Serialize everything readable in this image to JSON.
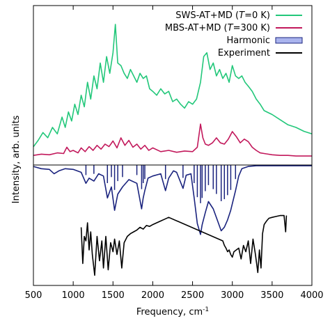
{
  "chart_data": {
    "type": "line",
    "xlabel": "Frequency, cm",
    "xlabel_sup": "-1",
    "ylabel": "Intensity, arb. units",
    "xlim": [
      500,
      4000
    ],
    "x_ticks": [
      "500",
      "1000",
      "1500",
      "2000",
      "2500",
      "3000",
      "3500",
      "4000"
    ],
    "y_ticks_shown": false,
    "grid": false,
    "legend_placement": "top-right",
    "colors": {
      "sws": "#22c77a",
      "mbs": "#c2185b",
      "harmonic": "#1a237e",
      "harmonic_fill": "#aab4ee",
      "experiment": "#000000"
    },
    "series": [
      {
        "name": "SWS-AT+MD (T=0 K)",
        "legend_parts": [
          "SWS-AT+MD (",
          "T",
          "=0 K)"
        ],
        "x": [
          500,
          560,
          620,
          680,
          740,
          800,
          860,
          900,
          940,
          980,
          1020,
          1060,
          1100,
          1140,
          1180,
          1220,
          1260,
          1300,
          1340,
          1380,
          1420,
          1460,
          1500,
          1530,
          1560,
          1600,
          1640,
          1680,
          1720,
          1760,
          1800,
          1840,
          1880,
          1920,
          1960,
          2000,
          2050,
          2100,
          2150,
          2200,
          2250,
          2300,
          2350,
          2400,
          2450,
          2500,
          2550,
          2600,
          2640,
          2680,
          2720,
          2760,
          2800,
          2840,
          2880,
          2920,
          2960,
          3000,
          3040,
          3080,
          3120,
          3160,
          3200,
          3250,
          3300,
          3350,
          3400,
          3500,
          3600,
          3700,
          3800,
          3900,
          4000
        ],
        "values": [
          0.05,
          0.1,
          0.16,
          0.12,
          0.2,
          0.15,
          0.28,
          0.2,
          0.32,
          0.25,
          0.38,
          0.3,
          0.45,
          0.36,
          0.55,
          0.42,
          0.6,
          0.5,
          0.7,
          0.55,
          0.75,
          0.62,
          0.78,
          1.0,
          0.7,
          0.68,
          0.62,
          0.58,
          0.65,
          0.6,
          0.55,
          0.62,
          0.58,
          0.6,
          0.5,
          0.48,
          0.45,
          0.5,
          0.46,
          0.48,
          0.4,
          0.42,
          0.38,
          0.35,
          0.4,
          0.38,
          0.42,
          0.55,
          0.75,
          0.78,
          0.65,
          0.7,
          0.6,
          0.65,
          0.58,
          0.62,
          0.55,
          0.68,
          0.6,
          0.58,
          0.6,
          0.55,
          0.52,
          0.48,
          0.42,
          0.38,
          0.33,
          0.3,
          0.26,
          0.22,
          0.2,
          0.17,
          0.15
        ]
      },
      {
        "name": "MBS-AT+MD (T=300 K)",
        "legend_parts": [
          "MBS-AT+MD (",
          "T",
          "=300 K)"
        ],
        "x": [
          500,
          600,
          700,
          800,
          880,
          920,
          960,
          1000,
          1060,
          1100,
          1150,
          1200,
          1250,
          1300,
          1350,
          1400,
          1450,
          1500,
          1550,
          1600,
          1650,
          1700,
          1750,
          1800,
          1850,
          1900,
          1950,
          2000,
          2100,
          2200,
          2300,
          2400,
          2500,
          2560,
          2600,
          2630,
          2660,
          2700,
          2750,
          2800,
          2850,
          2900,
          2950,
          3000,
          3050,
          3100,
          3150,
          3200,
          3250,
          3300,
          3350,
          3400,
          3500,
          3600,
          3700,
          3800,
          3900,
          4000
        ],
        "values": [
          0.02,
          0.04,
          0.03,
          0.06,
          0.05,
          0.15,
          0.08,
          0.1,
          0.06,
          0.14,
          0.08,
          0.16,
          0.1,
          0.18,
          0.12,
          0.2,
          0.16,
          0.25,
          0.14,
          0.3,
          0.18,
          0.26,
          0.15,
          0.2,
          0.12,
          0.18,
          0.1,
          0.14,
          0.08,
          0.1,
          0.07,
          0.09,
          0.08,
          0.15,
          0.52,
          0.3,
          0.2,
          0.18,
          0.22,
          0.3,
          0.22,
          0.2,
          0.28,
          0.4,
          0.32,
          0.22,
          0.28,
          0.24,
          0.15,
          0.1,
          0.06,
          0.05,
          0.03,
          0.02,
          0.02,
          0.01,
          0.01,
          0.01
        ]
      },
      {
        "name": "Harmonic",
        "x": [
          500,
          600,
          700,
          760,
          820,
          900,
          1000,
          1100,
          1160,
          1200,
          1260,
          1320,
          1380,
          1430,
          1480,
          1520,
          1560,
          1620,
          1700,
          1800,
          1860,
          1880,
          1900,
          1940,
          2000,
          2100,
          2160,
          2200,
          2260,
          2300,
          2380,
          2420,
          2480,
          2520,
          2560,
          2600,
          2620,
          2660,
          2700,
          2760,
          2800,
          2860,
          2900,
          2940,
          2980,
          3040,
          3080,
          3120,
          3200,
          3300,
          3400,
          3600,
          3800,
          4000
        ],
        "values": [
          0.02,
          0.05,
          0.06,
          0.12,
          0.08,
          0.05,
          0.06,
          0.1,
          0.25,
          0.18,
          0.22,
          0.12,
          0.15,
          0.45,
          0.3,
          0.62,
          0.4,
          0.3,
          0.2,
          0.25,
          0.6,
          0.45,
          0.35,
          0.18,
          0.15,
          0.12,
          0.35,
          0.18,
          0.08,
          0.1,
          0.32,
          0.14,
          0.12,
          0.45,
          0.8,
          0.95,
          0.82,
          0.65,
          0.5,
          0.6,
          0.72,
          0.9,
          0.85,
          0.75,
          0.62,
          0.35,
          0.15,
          0.05,
          0.02,
          0.01,
          0.01,
          0.01,
          0.01,
          0.01
        ]
      },
      {
        "name": "Experiment",
        "x": [
          1100,
          1120,
          1140,
          1160,
          1180,
          1200,
          1220,
          1240,
          1270,
          1300,
          1330,
          1360,
          1380,
          1410,
          1440,
          1470,
          1500,
          1520,
          1550,
          1580,
          1610,
          1640,
          1680,
          1720,
          1760,
          1800,
          1840,
          1880,
          1920,
          1960,
          2000,
          2050,
          2100,
          2150,
          2200,
          2880,
          2900,
          2920,
          2940,
          2960,
          2980,
          3000,
          3020,
          3050,
          3080,
          3110,
          3140,
          3170,
          3200,
          3230,
          3260,
          3290,
          3320,
          3340,
          3360,
          3380,
          3400,
          3430,
          3460,
          3500,
          3550,
          3600,
          3650,
          3670,
          3680
        ],
        "values": [
          0.45,
          0.85,
          0.55,
          0.6,
          0.4,
          0.7,
          0.5,
          0.75,
          0.98,
          0.55,
          0.82,
          0.6,
          0.9,
          0.55,
          0.92,
          0.62,
          0.72,
          0.58,
          0.75,
          0.6,
          0.9,
          0.62,
          0.55,
          0.52,
          0.5,
          0.48,
          0.45,
          0.47,
          0.43,
          0.44,
          0.42,
          0.4,
          0.38,
          0.36,
          0.34,
          0.6,
          0.65,
          0.68,
          0.72,
          0.7,
          0.75,
          0.78,
          0.72,
          0.7,
          0.68,
          0.8,
          0.65,
          0.72,
          0.6,
          0.85,
          0.58,
          0.75,
          0.95,
          0.7,
          0.9,
          0.52,
          0.42,
          0.38,
          0.35,
          0.34,
          0.33,
          0.32,
          0.32,
          0.5,
          0.32
        ]
      }
    ]
  }
}
